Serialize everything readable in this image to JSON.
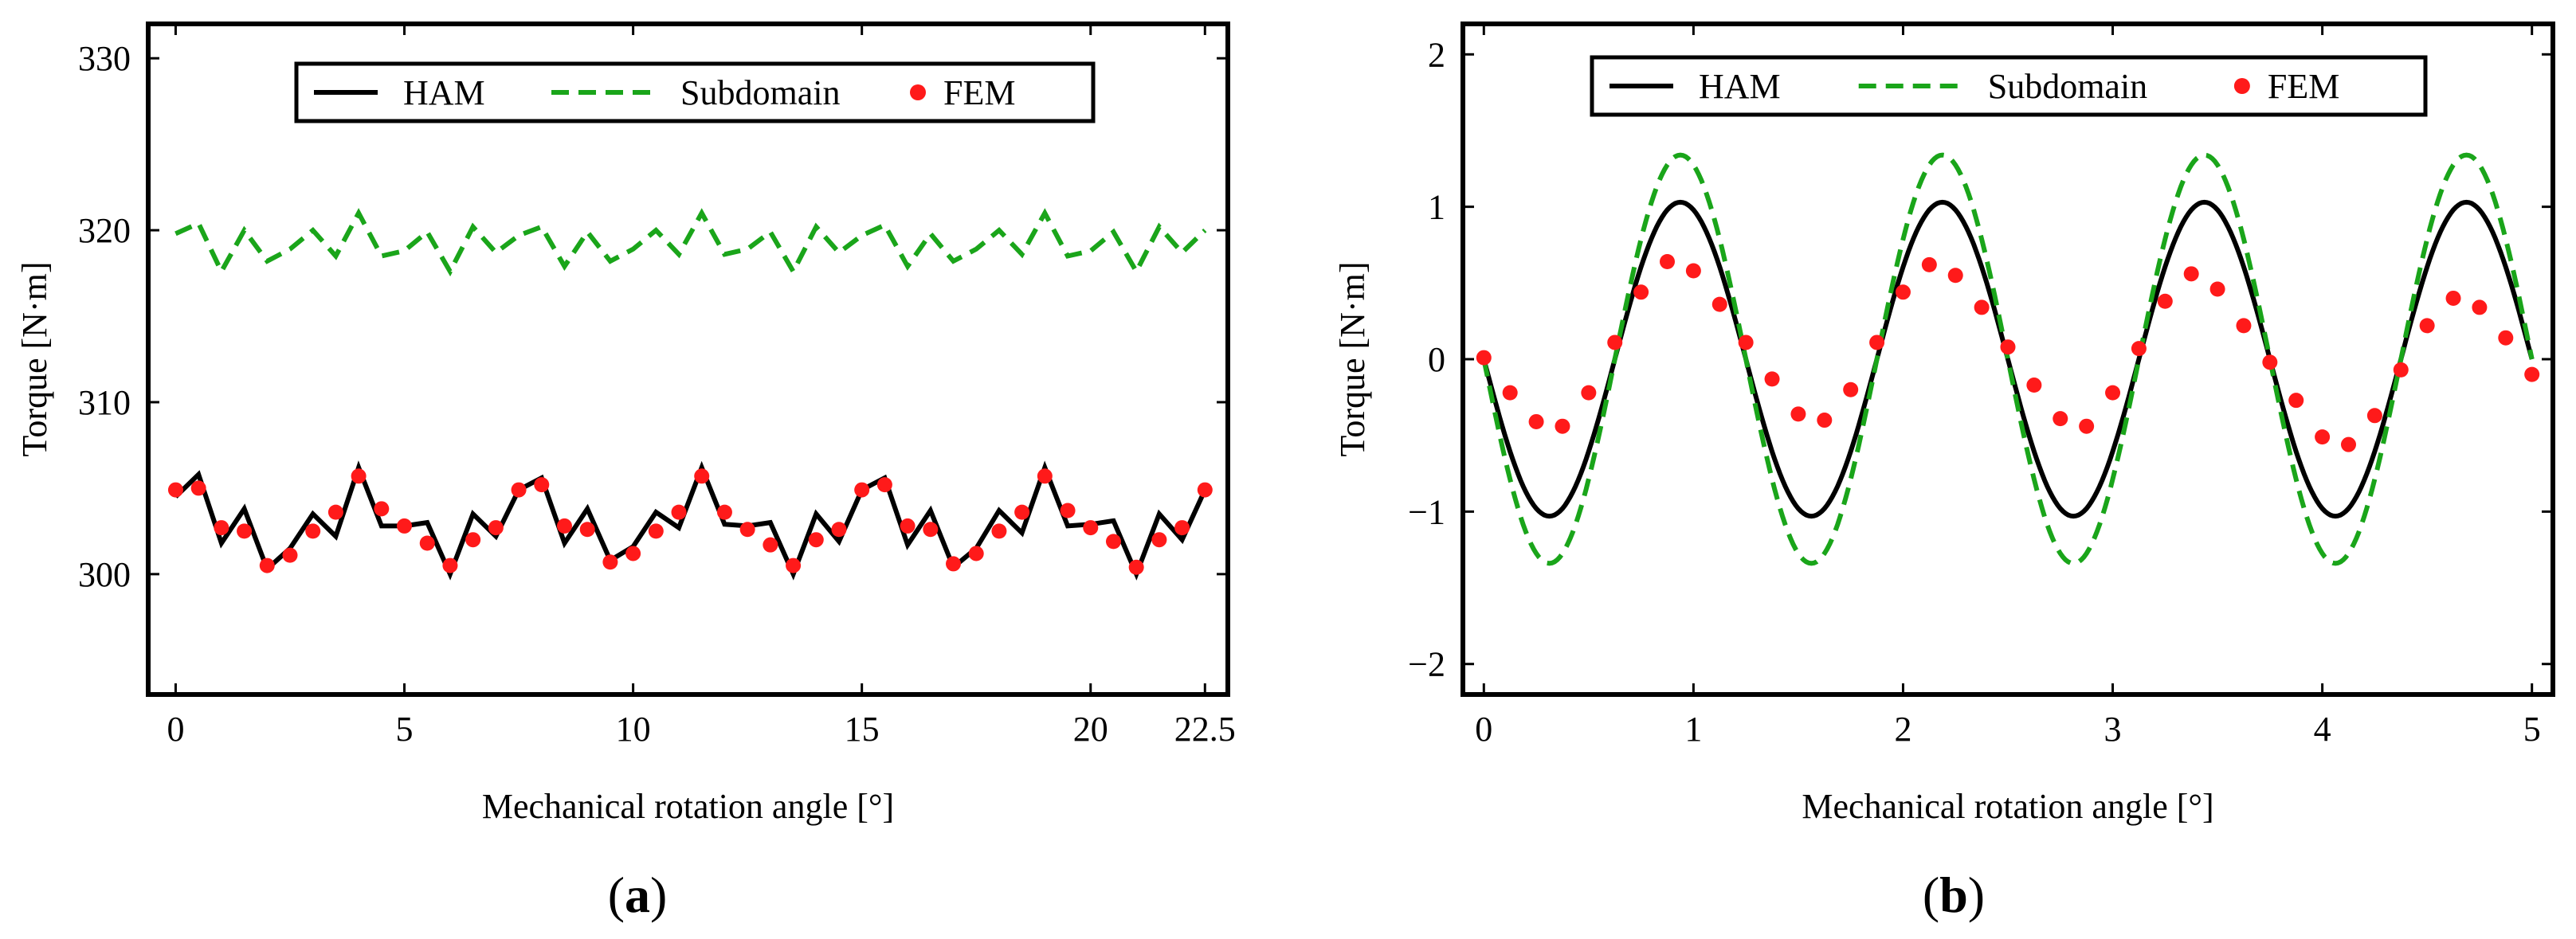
{
  "figure": {
    "panel_labels": [
      {
        "open": "(",
        "letter": "a",
        "close": ")"
      },
      {
        "open": "(",
        "letter": "b",
        "close": ")"
      }
    ]
  },
  "colors": {
    "ham": "#000000",
    "subdomain": "#1aa51a",
    "fem": "#ff1a1a",
    "frame": "#000000"
  },
  "chart_data": [
    {
      "type": "line",
      "title": "",
      "xlabel": "Mechanical rotation  angle [°]",
      "ylabel": "Torque [N·m]",
      "xlim": [
        -0.6,
        23.0
      ],
      "ylim": [
        293,
        332
      ],
      "xticks": [
        0,
        5,
        10,
        15,
        20,
        22.5
      ],
      "xtick_labels": [
        "0",
        "5",
        "10",
        "15",
        "20",
        "22.5"
      ],
      "yticks": [
        300,
        310,
        320,
        330
      ],
      "ytick_labels": [
        "300",
        "310",
        "320",
        "330"
      ],
      "legend": [
        "HAM",
        "Subdomain",
        "FEM"
      ],
      "legend_position": "top-center",
      "series": [
        {
          "name": "HAM",
          "style": "solid",
          "x": [
            0,
            0.5,
            1,
            1.5,
            2,
            2.5,
            3,
            3.5,
            4,
            4.5,
            5,
            5.5,
            6,
            6.5,
            7,
            7.5,
            8,
            8.5,
            9,
            9.5,
            10,
            10.5,
            11,
            11.5,
            12,
            12.5,
            13,
            13.5,
            14,
            14.5,
            15,
            15.5,
            16,
            16.5,
            17,
            17.5,
            18,
            18.5,
            19,
            19.5,
            20,
            20.5,
            21,
            21.5,
            22,
            22.5
          ],
          "y": [
            304.5,
            305.8,
            301.8,
            303.8,
            300.3,
            301.5,
            303.5,
            302.2,
            306.2,
            302.8,
            302.8,
            303,
            300,
            303.5,
            302.2,
            304.9,
            305.6,
            301.8,
            303.8,
            300.8,
            301.6,
            303.6,
            302.7,
            306.2,
            302.9,
            302.8,
            303,
            300,
            303.5,
            301.9,
            304.9,
            305.6,
            301.7,
            303.7,
            300.4,
            301.5,
            303.7,
            302.4,
            306.2,
            302.8,
            302.9,
            303.1,
            300,
            303.5,
            302,
            304.9
          ]
        },
        {
          "name": "Subdomain",
          "style": "dashed",
          "x": [
            0,
            0.5,
            1,
            1.5,
            2,
            2.5,
            3,
            3.5,
            4,
            4.5,
            5,
            5.5,
            6,
            6.5,
            7,
            7.5,
            8,
            8.5,
            9,
            9.5,
            10,
            10.5,
            11,
            11.5,
            12,
            12.5,
            13,
            13.5,
            14,
            14.5,
            15,
            15.5,
            16,
            16.5,
            17,
            17.5,
            18,
            18.5,
            19,
            19.5,
            20,
            20.5,
            21,
            21.5,
            22,
            22.5
          ],
          "y": [
            319.8,
            320.4,
            317.6,
            320,
            318.2,
            318.9,
            320,
            318.5,
            321,
            318.5,
            318.8,
            319.9,
            317.6,
            320.2,
            318.7,
            319.7,
            320.2,
            317.9,
            319.9,
            318.2,
            318.9,
            320,
            318.6,
            321,
            318.6,
            318.9,
            319.9,
            317.6,
            320.2,
            318.7,
            319.7,
            320.3,
            317.9,
            319.8,
            318.2,
            318.9,
            320,
            318.6,
            321,
            318.5,
            318.8,
            319.9,
            317.6,
            320.2,
            318.7,
            320
          ]
        },
        {
          "name": "FEM",
          "style": "markers",
          "x": [
            0,
            0.5,
            1,
            1.5,
            2,
            2.5,
            3,
            3.5,
            4,
            4.5,
            5,
            5.5,
            6,
            6.5,
            7,
            7.5,
            8,
            8.5,
            9,
            9.5,
            10,
            10.5,
            11,
            11.5,
            12,
            12.5,
            13,
            13.5,
            14,
            14.5,
            15,
            15.5,
            16,
            16.5,
            17,
            17.5,
            18,
            18.5,
            19,
            19.5,
            20,
            20.5,
            21,
            21.5,
            22,
            22.5
          ],
          "y": [
            304.9,
            305,
            302.7,
            302.5,
            300.5,
            301.1,
            302.5,
            303.6,
            305.7,
            303.8,
            302.8,
            301.8,
            300.5,
            302,
            302.7,
            304.9,
            305.2,
            302.8,
            302.6,
            300.7,
            301.2,
            302.5,
            303.6,
            305.7,
            303.6,
            302.6,
            301.7,
            300.5,
            302,
            302.6,
            304.9,
            305.2,
            302.8,
            302.6,
            300.6,
            301.2,
            302.5,
            303.6,
            305.7,
            303.7,
            302.7,
            301.9,
            300.4,
            302,
            302.7,
            304.9
          ]
        }
      ]
    },
    {
      "type": "line",
      "title": "",
      "xlabel": "Mechanical rotation  angle [°]",
      "ylabel": "Torque [N·m]",
      "xlim": [
        -0.1,
        5.1
      ],
      "ylim": [
        -2.2,
        2.2
      ],
      "xticks": [
        0,
        1,
        2,
        3,
        4,
        5
      ],
      "xtick_labels": [
        "0",
        "1",
        "2",
        "3",
        "4",
        "5"
      ],
      "yticks": [
        -2,
        -1,
        0,
        1,
        2
      ],
      "ytick_labels": [
        "−2",
        "−1",
        "0",
        "1",
        "2"
      ],
      "legend": [
        "HAM",
        "Subdomain",
        "FEM"
      ],
      "legend_position": "top-center",
      "series": [
        {
          "name": "HAM",
          "style": "solid",
          "function": "sine",
          "amplitude": 1.03,
          "period": 1.25,
          "x_range": [
            0,
            5
          ]
        },
        {
          "name": "Subdomain",
          "style": "dashed",
          "function": "sine",
          "amplitude": 1.34,
          "period": 1.25,
          "x_range": [
            0,
            5
          ]
        },
        {
          "name": "FEM",
          "style": "markers",
          "x": [
            0,
            0.125,
            0.25,
            0.375,
            0.5,
            0.625,
            0.75,
            0.875,
            1,
            1.125,
            1.25,
            1.375,
            1.5,
            1.625,
            1.75,
            1.875,
            2,
            2.125,
            2.25,
            2.375,
            2.5,
            2.625,
            2.75,
            2.875,
            3,
            3.125,
            3.25,
            3.375,
            3.5,
            3.625,
            3.75,
            3.875,
            4,
            4.125,
            4.25,
            4.375,
            4.5,
            4.625,
            4.75,
            4.875,
            5
          ],
          "y": [
            0.01,
            -0.22,
            -0.41,
            -0.44,
            -0.22,
            0.11,
            0.44,
            0.64,
            0.58,
            0.36,
            0.11,
            -0.13,
            -0.36,
            -0.4,
            -0.2,
            0.11,
            0.44,
            0.62,
            0.55,
            0.34,
            0.08,
            -0.17,
            -0.39,
            -0.44,
            -0.22,
            0.07,
            0.38,
            0.56,
            0.46,
            0.22,
            -0.02,
            -0.27,
            -0.51,
            -0.56,
            -0.37,
            -0.07,
            0.22,
            0.4,
            0.34,
            0.14,
            -0.1
          ]
        }
      ]
    }
  ]
}
